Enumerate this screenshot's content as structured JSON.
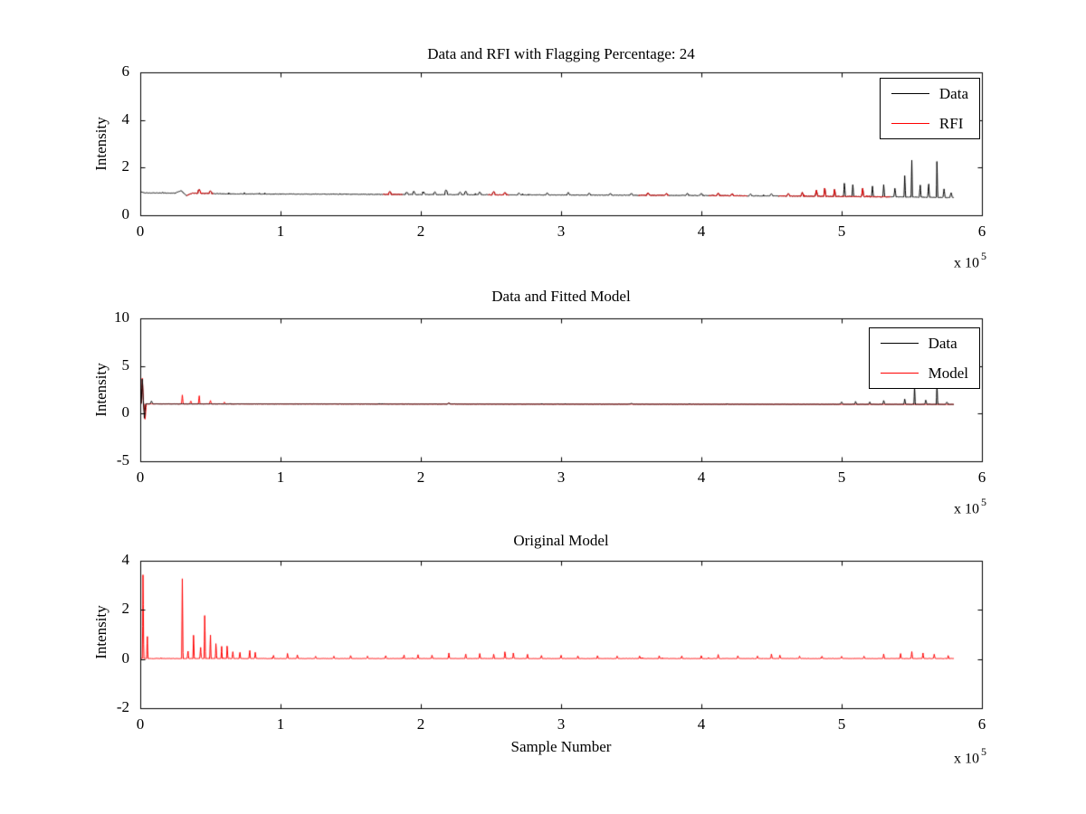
{
  "figure": {
    "background": "#ffffff",
    "text_color": "#000000"
  },
  "chart_data": [
    {
      "type": "line",
      "title": "Data and RFI with Flagging Percentage: 24",
      "ylabel": "Intensity",
      "xlabel": "",
      "x_unit_scale": 100000,
      "x_exponent": {
        "mantissa": "x 10",
        "exp": "5"
      },
      "xlim": [
        0,
        6
      ],
      "ylim": [
        0,
        6
      ],
      "xticks": [
        0,
        1,
        2,
        3,
        4,
        5,
        6
      ],
      "yticks": [
        0,
        2,
        4,
        6
      ],
      "grid": false,
      "legend_position": "top-right",
      "legend": [
        {
          "label": "Data",
          "color": "#000000"
        },
        {
          "label": "RFI",
          "color": "#ff0000"
        }
      ],
      "series": [
        {
          "name": "Data",
          "color": "#000000",
          "seed": 11,
          "xmax": 5.8,
          "noise": 0.013,
          "baseline": [
            [
              0,
              0.99
            ],
            [
              0.03,
              0.94
            ],
            [
              0.25,
              0.93
            ],
            [
              0.29,
              1.04
            ],
            [
              0.33,
              0.82
            ],
            [
              0.37,
              0.93
            ],
            [
              0.6,
              0.9
            ],
            [
              1,
              0.89
            ],
            [
              1.5,
              0.88
            ],
            [
              2,
              0.87
            ],
            [
              2.5,
              0.86
            ],
            [
              3,
              0.85
            ],
            [
              3.5,
              0.84
            ],
            [
              4,
              0.83
            ],
            [
              4.5,
              0.81
            ],
            [
              5,
              0.79
            ],
            [
              5.4,
              0.77
            ],
            [
              5.8,
              0.74
            ]
          ],
          "spikes": [
            [
              0.42,
              0.15,
              0.02
            ],
            [
              0.5,
              0.1,
              0.02
            ],
            [
              1.78,
              0.12,
              0.025
            ],
            [
              1.9,
              0.1,
              0.02
            ],
            [
              1.95,
              0.14,
              0.015
            ],
            [
              2.02,
              0.1,
              0.015
            ],
            [
              2.1,
              0.12,
              0.015
            ],
            [
              2.18,
              0.2,
              0.02
            ],
            [
              2.28,
              0.12,
              0.015
            ],
            [
              2.32,
              0.16,
              0.015
            ],
            [
              2.42,
              0.12,
              0.015
            ],
            [
              2.52,
              0.14,
              0.015
            ],
            [
              2.6,
              0.1,
              0.015
            ],
            [
              2.7,
              0.08,
              0.015
            ],
            [
              2.9,
              0.08,
              0.015
            ],
            [
              3.05,
              0.1,
              0.015
            ],
            [
              3.2,
              0.08,
              0.015
            ],
            [
              3.35,
              0.08,
              0.015
            ],
            [
              3.5,
              0.08,
              0.015
            ],
            [
              3.62,
              0.1,
              0.015
            ],
            [
              3.75,
              0.08,
              0.015
            ],
            [
              3.9,
              0.08,
              0.015
            ],
            [
              4.0,
              0.1,
              0.015
            ],
            [
              4.12,
              0.1,
              0.015
            ],
            [
              4.22,
              0.08,
              0.015
            ],
            [
              4.35,
              0.08,
              0.015
            ],
            [
              4.5,
              0.1,
              0.015
            ],
            [
              4.62,
              0.12,
              0.012
            ],
            [
              4.72,
              0.15,
              0.012
            ],
            [
              4.82,
              0.25,
              0.01
            ],
            [
              4.88,
              0.35,
              0.008
            ],
            [
              4.95,
              0.3,
              0.008
            ],
            [
              5.02,
              0.55,
              0.007
            ],
            [
              5.08,
              0.5,
              0.007
            ],
            [
              5.15,
              0.35,
              0.008
            ],
            [
              5.22,
              0.45,
              0.007
            ],
            [
              5.3,
              0.5,
              0.007
            ],
            [
              5.38,
              0.35,
              0.008
            ],
            [
              5.45,
              0.9,
              0.006
            ],
            [
              5.5,
              1.55,
              0.005
            ],
            [
              5.56,
              0.5,
              0.007
            ],
            [
              5.62,
              0.55,
              0.007
            ],
            [
              5.68,
              1.5,
              0.005
            ],
            [
              5.73,
              0.35,
              0.008
            ],
            [
              5.78,
              0.2,
              0.01
            ]
          ]
        },
        {
          "name": "RFI",
          "color": "#ff0000",
          "overlay_of": 0,
          "max_spike_height": 0.4,
          "ranges": [
            [
              0.33,
              0.52
            ],
            [
              1.73,
              1.87
            ],
            [
              2.48,
              2.63
            ],
            [
              3.55,
              3.77
            ],
            [
              4.05,
              4.33
            ],
            [
              4.55,
              5.35
            ]
          ]
        }
      ]
    },
    {
      "type": "line",
      "title": "Data and Fitted Model",
      "ylabel": "Intensity",
      "xlabel": "",
      "x_unit_scale": 100000,
      "x_exponent": {
        "mantissa": "x 10",
        "exp": "5"
      },
      "xlim": [
        0,
        6
      ],
      "ylim": [
        -5,
        10
      ],
      "xticks": [
        0,
        1,
        2,
        3,
        4,
        5,
        6
      ],
      "yticks": [
        -5,
        0,
        5,
        10
      ],
      "grid": false,
      "legend_position": "top-right",
      "legend": [
        {
          "label": "Data",
          "color": "#000000"
        },
        {
          "label": "Model",
          "color": "#ff0000"
        }
      ],
      "series": [
        {
          "name": "Model",
          "color": "#ff0000",
          "seed": 37,
          "xmax": 5.8,
          "noise": 0.012,
          "baseline": [
            [
              0,
              1.02
            ],
            [
              5.8,
              0.97
            ]
          ],
          "spikes": [
            [
              0.015,
              2.7,
              0.008
            ],
            [
              0.035,
              -1.6,
              0.008
            ],
            [
              0.3,
              0.95,
              0.006
            ],
            [
              0.36,
              0.3,
              0.008
            ],
            [
              0.42,
              0.85,
              0.006
            ],
            [
              0.5,
              0.35,
              0.008
            ],
            [
              0.6,
              0.2,
              0.008
            ],
            [
              2.2,
              0.1,
              0.02
            ]
          ]
        },
        {
          "name": "Data",
          "color": "#000000",
          "seed": 23,
          "xmax": 5.8,
          "noise": 0.015,
          "baseline": [
            [
              0,
              1.02
            ],
            [
              5.8,
              0.97
            ]
          ],
          "spikes": [
            [
              0.015,
              2.6,
              0.008
            ],
            [
              0.03,
              -1.5,
              0.008
            ],
            [
              0.08,
              0.3,
              0.01
            ],
            [
              2.2,
              0.1,
              0.02
            ],
            [
              3.5,
              0.08,
              0.02
            ],
            [
              5.0,
              0.25,
              0.01
            ],
            [
              5.1,
              0.3,
              0.008
            ],
            [
              5.2,
              0.25,
              0.008
            ],
            [
              5.3,
              0.4,
              0.008
            ],
            [
              5.45,
              0.55,
              0.007
            ],
            [
              5.52,
              1.9,
              0.005
            ],
            [
              5.6,
              0.45,
              0.008
            ],
            [
              5.68,
              2.1,
              0.005
            ],
            [
              5.75,
              0.25,
              0.01
            ]
          ]
        }
      ]
    },
    {
      "type": "line",
      "title": "Original Model",
      "ylabel": "Intensity",
      "xlabel": "Sample Number",
      "x_unit_scale": 100000,
      "x_exponent": {
        "mantissa": "x 10",
        "exp": "5"
      },
      "xlim": [
        0,
        6
      ],
      "ylim": [
        -2,
        4
      ],
      "xticks": [
        0,
        1,
        2,
        3,
        4,
        5,
        6
      ],
      "yticks": [
        -2,
        0,
        2,
        4
      ],
      "grid": false,
      "legend": [],
      "series": [
        {
          "name": "Model",
          "color": "#ff0000",
          "seed": 51,
          "xmax": 5.8,
          "noise": 0.008,
          "baseline": [
            [
              0,
              0.02
            ],
            [
              5.8,
              0.02
            ]
          ],
          "spikes": [
            [
              0.02,
              3.4,
              0.005
            ],
            [
              0.05,
              0.9,
              0.005
            ],
            [
              0.3,
              3.25,
              0.005
            ],
            [
              0.34,
              0.3,
              0.006
            ],
            [
              0.38,
              0.95,
              0.005
            ],
            [
              0.43,
              0.45,
              0.006
            ],
            [
              0.46,
              1.75,
              0.005
            ],
            [
              0.5,
              0.95,
              0.005
            ],
            [
              0.54,
              0.6,
              0.005
            ],
            [
              0.58,
              0.5,
              0.005
            ],
            [
              0.62,
              0.5,
              0.005
            ],
            [
              0.66,
              0.28,
              0.006
            ],
            [
              0.71,
              0.25,
              0.006
            ],
            [
              0.78,
              0.32,
              0.006
            ],
            [
              0.82,
              0.25,
              0.006
            ],
            [
              0.95,
              0.12,
              0.006
            ],
            [
              1.05,
              0.2,
              0.006
            ],
            [
              1.12,
              0.15,
              0.006
            ],
            [
              1.25,
              0.1,
              0.006
            ],
            [
              1.38,
              0.1,
              0.006
            ],
            [
              1.5,
              0.12,
              0.006
            ],
            [
              1.62,
              0.1,
              0.006
            ],
            [
              1.75,
              0.12,
              0.006
            ],
            [
              1.88,
              0.14,
              0.006
            ],
            [
              1.98,
              0.16,
              0.006
            ],
            [
              2.08,
              0.13,
              0.006
            ],
            [
              2.2,
              0.22,
              0.006
            ],
            [
              2.32,
              0.18,
              0.006
            ],
            [
              2.42,
              0.2,
              0.006
            ],
            [
              2.52,
              0.18,
              0.006
            ],
            [
              2.6,
              0.28,
              0.006
            ],
            [
              2.66,
              0.22,
              0.006
            ],
            [
              2.76,
              0.18,
              0.006
            ],
            [
              2.86,
              0.13,
              0.006
            ],
            [
              3.0,
              0.13,
              0.006
            ],
            [
              3.12,
              0.11,
              0.006
            ],
            [
              3.26,
              0.11,
              0.006
            ],
            [
              3.4,
              0.1,
              0.006
            ],
            [
              3.56,
              0.11,
              0.006
            ],
            [
              3.7,
              0.11,
              0.006
            ],
            [
              3.86,
              0.1,
              0.006
            ],
            [
              4.0,
              0.11,
              0.006
            ],
            [
              4.12,
              0.16,
              0.006
            ],
            [
              4.26,
              0.11,
              0.006
            ],
            [
              4.4,
              0.1,
              0.006
            ],
            [
              4.5,
              0.18,
              0.006
            ],
            [
              4.56,
              0.13,
              0.006
            ],
            [
              4.7,
              0.1,
              0.006
            ],
            [
              4.86,
              0.09,
              0.006
            ],
            [
              5.0,
              0.09,
              0.006
            ],
            [
              5.16,
              0.09,
              0.006
            ],
            [
              5.3,
              0.18,
              0.006
            ],
            [
              5.42,
              0.2,
              0.006
            ],
            [
              5.5,
              0.28,
              0.006
            ],
            [
              5.58,
              0.22,
              0.006
            ],
            [
              5.66,
              0.18,
              0.006
            ],
            [
              5.76,
              0.12,
              0.006
            ]
          ]
        }
      ]
    }
  ]
}
